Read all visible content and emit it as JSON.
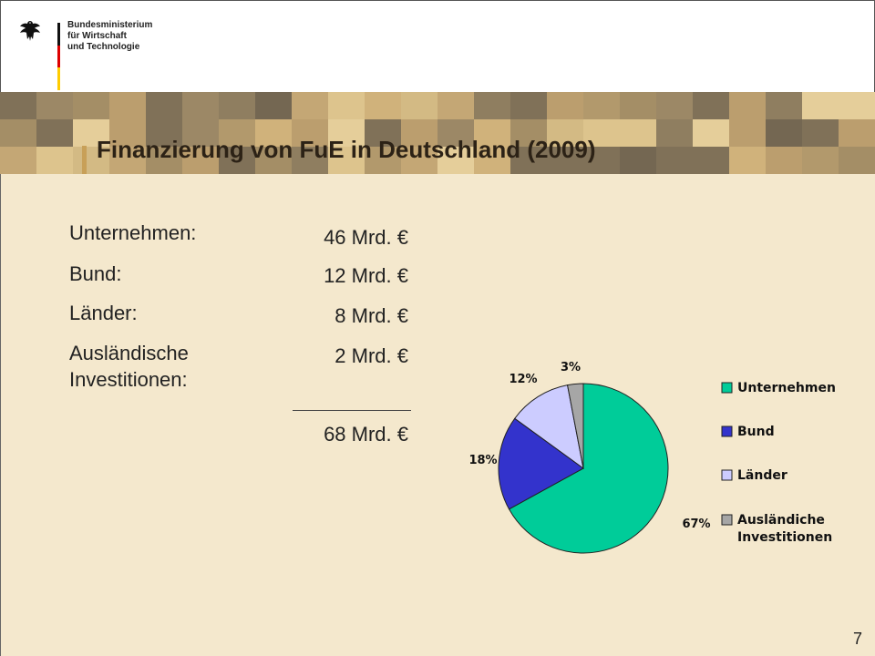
{
  "header": {
    "ministry": "Bundesministerium\nfür Wirtschaft\nund Technologie"
  },
  "title": "Finanzierung von FuE in Deutschland (2009)",
  "rows": [
    {
      "label": "Unternehmen:",
      "value": "46 Mrd. €"
    },
    {
      "label": "Bund:",
      "value": "12 Mrd. €"
    },
    {
      "label": "Länder:",
      "value": "8 Mrd. €"
    },
    {
      "label": "Ausländische\nInvestitionen:",
      "value": "2 Mrd. €"
    }
  ],
  "total": "68 Mrd. €",
  "page_number": "7",
  "chart_data": {
    "type": "pie",
    "categories": [
      "Unternehmen",
      "Bund",
      "Länder",
      "Ausländiche Investitionen"
    ],
    "values": [
      67,
      18,
      12,
      3
    ],
    "data_labels": [
      "67%",
      "18%",
      "12%",
      "3%"
    ],
    "colors": [
      "#00cc99",
      "#3333cc",
      "#ccccff",
      "#a6a6a6"
    ],
    "legend_position": "right"
  },
  "colors": {
    "background": "#f4e8cd",
    "title_text": "#2c2216"
  }
}
